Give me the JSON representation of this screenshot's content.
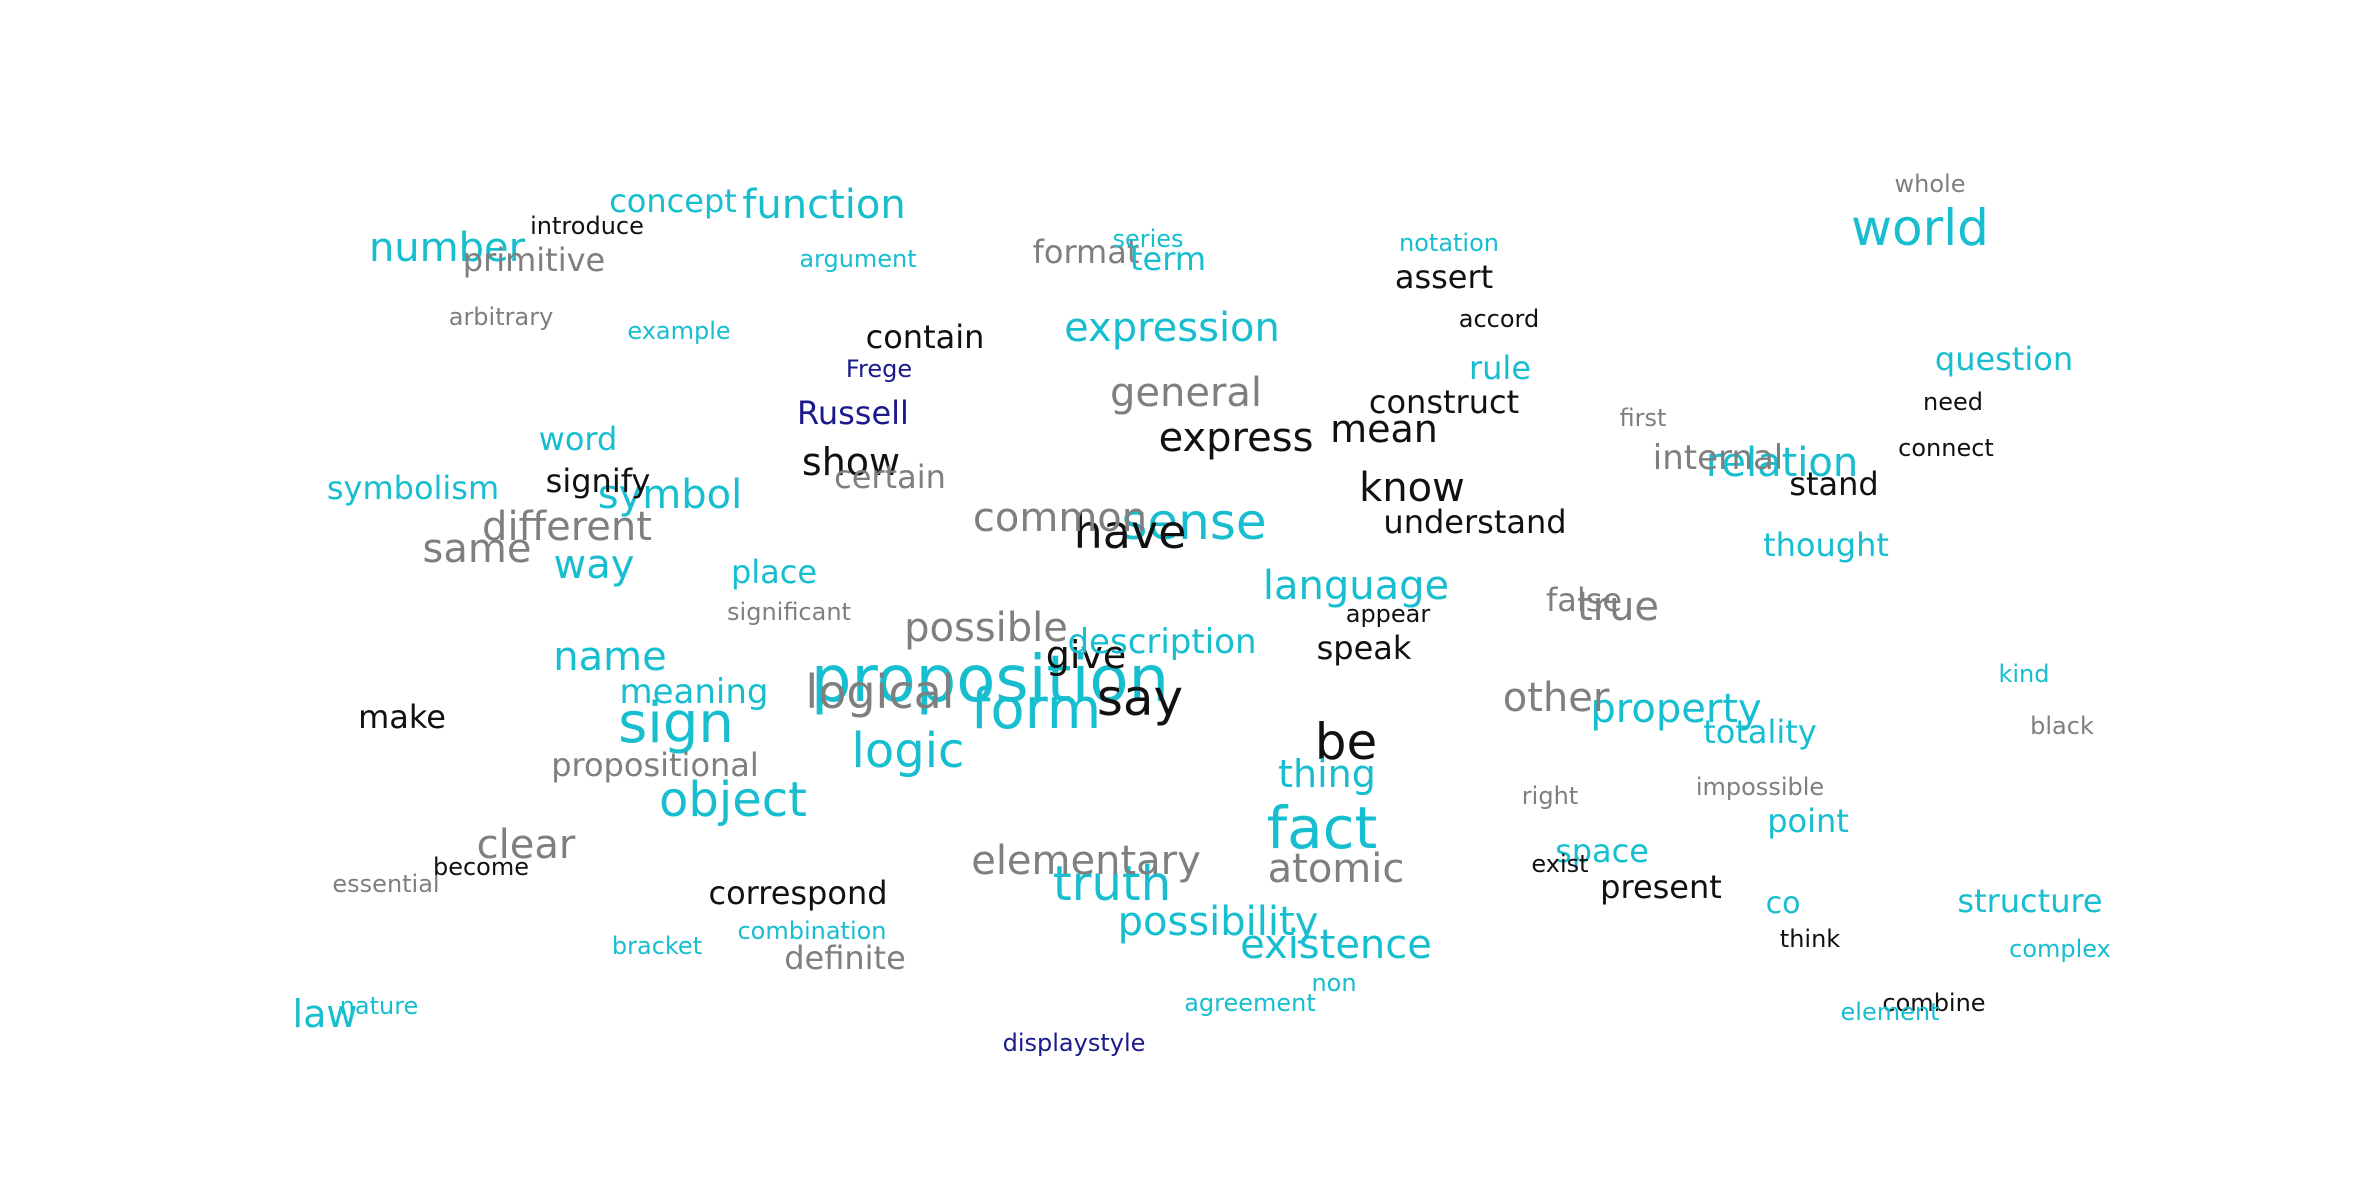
{
  "palette": {
    "cyan": "#17becf",
    "gray": "#7f7f7f",
    "black": "#111111",
    "navy": "#1a1a8c"
  },
  "words": [
    {
      "text": "proposition",
      "color": "cyan"
    },
    {
      "text": "form",
      "color": "cyan"
    },
    {
      "text": "logical",
      "color": "gray"
    },
    {
      "text": "fact",
      "color": "cyan"
    },
    {
      "text": "sign",
      "color": "cyan"
    },
    {
      "text": "be",
      "color": "black"
    },
    {
      "text": "say",
      "color": "black"
    },
    {
      "text": "sense",
      "color": "cyan"
    },
    {
      "text": "have",
      "color": "black"
    },
    {
      "text": "logic",
      "color": "cyan"
    },
    {
      "text": "object",
      "color": "cyan"
    },
    {
      "text": "world",
      "color": "cyan"
    },
    {
      "text": "truth",
      "color": "cyan"
    },
    {
      "text": "elementary",
      "color": "gray"
    },
    {
      "text": "common",
      "color": "gray"
    },
    {
      "text": "express",
      "color": "black"
    },
    {
      "text": "possible",
      "color": "gray"
    },
    {
      "text": "language",
      "color": "cyan"
    },
    {
      "text": "property",
      "color": "cyan"
    },
    {
      "text": "existence",
      "color": "cyan"
    },
    {
      "text": "atomic",
      "color": "gray"
    },
    {
      "text": "possibility",
      "color": "cyan"
    },
    {
      "text": "know",
      "color": "black"
    },
    {
      "text": "mean",
      "color": "black"
    },
    {
      "text": "expression",
      "color": "cyan"
    },
    {
      "text": "general",
      "color": "gray"
    },
    {
      "text": "different",
      "color": "gray"
    },
    {
      "text": "other",
      "color": "gray"
    },
    {
      "text": "true",
      "color": "gray"
    },
    {
      "text": "relation",
      "color": "cyan"
    },
    {
      "text": "clear",
      "color": "gray"
    },
    {
      "text": "same",
      "color": "gray"
    },
    {
      "text": "give",
      "color": "black"
    },
    {
      "text": "show",
      "color": "black"
    },
    {
      "text": "name",
      "color": "cyan"
    },
    {
      "text": "symbol",
      "color": "cyan"
    },
    {
      "text": "number",
      "color": "cyan"
    },
    {
      "text": "function",
      "color": "cyan"
    },
    {
      "text": "way",
      "color": "cyan"
    },
    {
      "text": "thing",
      "color": "cyan"
    },
    {
      "text": "description",
      "color": "cyan"
    },
    {
      "text": "meaning",
      "color": "cyan"
    },
    {
      "text": "internal",
      "color": "gray"
    },
    {
      "text": "propositional",
      "color": "gray"
    },
    {
      "text": "certain",
      "color": "gray"
    },
    {
      "text": "construct",
      "color": "black"
    },
    {
      "text": "Russell",
      "color": "navy"
    },
    {
      "text": "understand",
      "color": "black"
    },
    {
      "text": "correspond",
      "color": "black"
    },
    {
      "text": "present",
      "color": "black"
    },
    {
      "text": "speak",
      "color": "black"
    },
    {
      "text": "totality",
      "color": "cyan"
    },
    {
      "text": "primitive",
      "color": "gray"
    },
    {
      "text": "definite",
      "color": "gray"
    },
    {
      "text": "concept",
      "color": "cyan"
    },
    {
      "text": "format",
      "color": "gray"
    },
    {
      "text": "question",
      "color": "cyan"
    },
    {
      "text": "make",
      "color": "black"
    },
    {
      "text": "assert",
      "color": "black"
    },
    {
      "text": "thought",
      "color": "cyan"
    },
    {
      "text": "contain",
      "color": "black"
    },
    {
      "text": "symbolism",
      "color": "cyan"
    },
    {
      "text": "false",
      "color": "gray"
    },
    {
      "text": "place",
      "color": "cyan"
    },
    {
      "text": "point",
      "color": "cyan"
    },
    {
      "text": "structure",
      "color": "cyan"
    },
    {
      "text": "law",
      "color": "cyan"
    },
    {
      "text": "stand",
      "color": "black"
    },
    {
      "text": "term",
      "color": "cyan"
    },
    {
      "text": "signify",
      "color": "black"
    },
    {
      "text": "space",
      "color": "cyan"
    },
    {
      "text": "rule",
      "color": "cyan"
    },
    {
      "text": "word",
      "color": "cyan"
    },
    {
      "text": "co",
      "color": "cyan"
    },
    {
      "text": "significant",
      "color": "gray"
    },
    {
      "text": "impossible",
      "color": "gray"
    },
    {
      "text": "arbitrary",
      "color": "gray"
    },
    {
      "text": "argument",
      "color": "cyan"
    },
    {
      "text": "example",
      "color": "cyan"
    },
    {
      "text": "bracket",
      "color": "cyan"
    },
    {
      "text": "combination",
      "color": "cyan"
    },
    {
      "text": "displaystyle",
      "color": "navy"
    },
    {
      "text": "agreement",
      "color": "cyan"
    },
    {
      "text": "essential",
      "color": "gray"
    },
    {
      "text": "become",
      "color": "black"
    },
    {
      "text": "introduce",
      "color": "black"
    },
    {
      "text": "notation",
      "color": "cyan"
    },
    {
      "text": "accord",
      "color": "black"
    },
    {
      "text": "series",
      "color": "cyan"
    },
    {
      "text": "Frege",
      "color": "navy"
    },
    {
      "text": "appear",
      "color": "black"
    },
    {
      "text": "right",
      "color": "gray"
    },
    {
      "text": "exist",
      "color": "black"
    },
    {
      "text": "whole",
      "color": "gray"
    },
    {
      "text": "first",
      "color": "gray"
    },
    {
      "text": "need",
      "color": "black"
    },
    {
      "text": "connect",
      "color": "black"
    },
    {
      "text": "kind",
      "color": "cyan"
    },
    {
      "text": "black",
      "color": "gray"
    },
    {
      "text": "complex",
      "color": "cyan"
    },
    {
      "text": "think",
      "color": "black"
    },
    {
      "text": "combine",
      "color": "black"
    },
    {
      "text": "element",
      "color": "cyan"
    },
    {
      "text": "nature",
      "color": "cyan"
    },
    {
      "text": "non",
      "color": "cyan"
    }
  ]
}
